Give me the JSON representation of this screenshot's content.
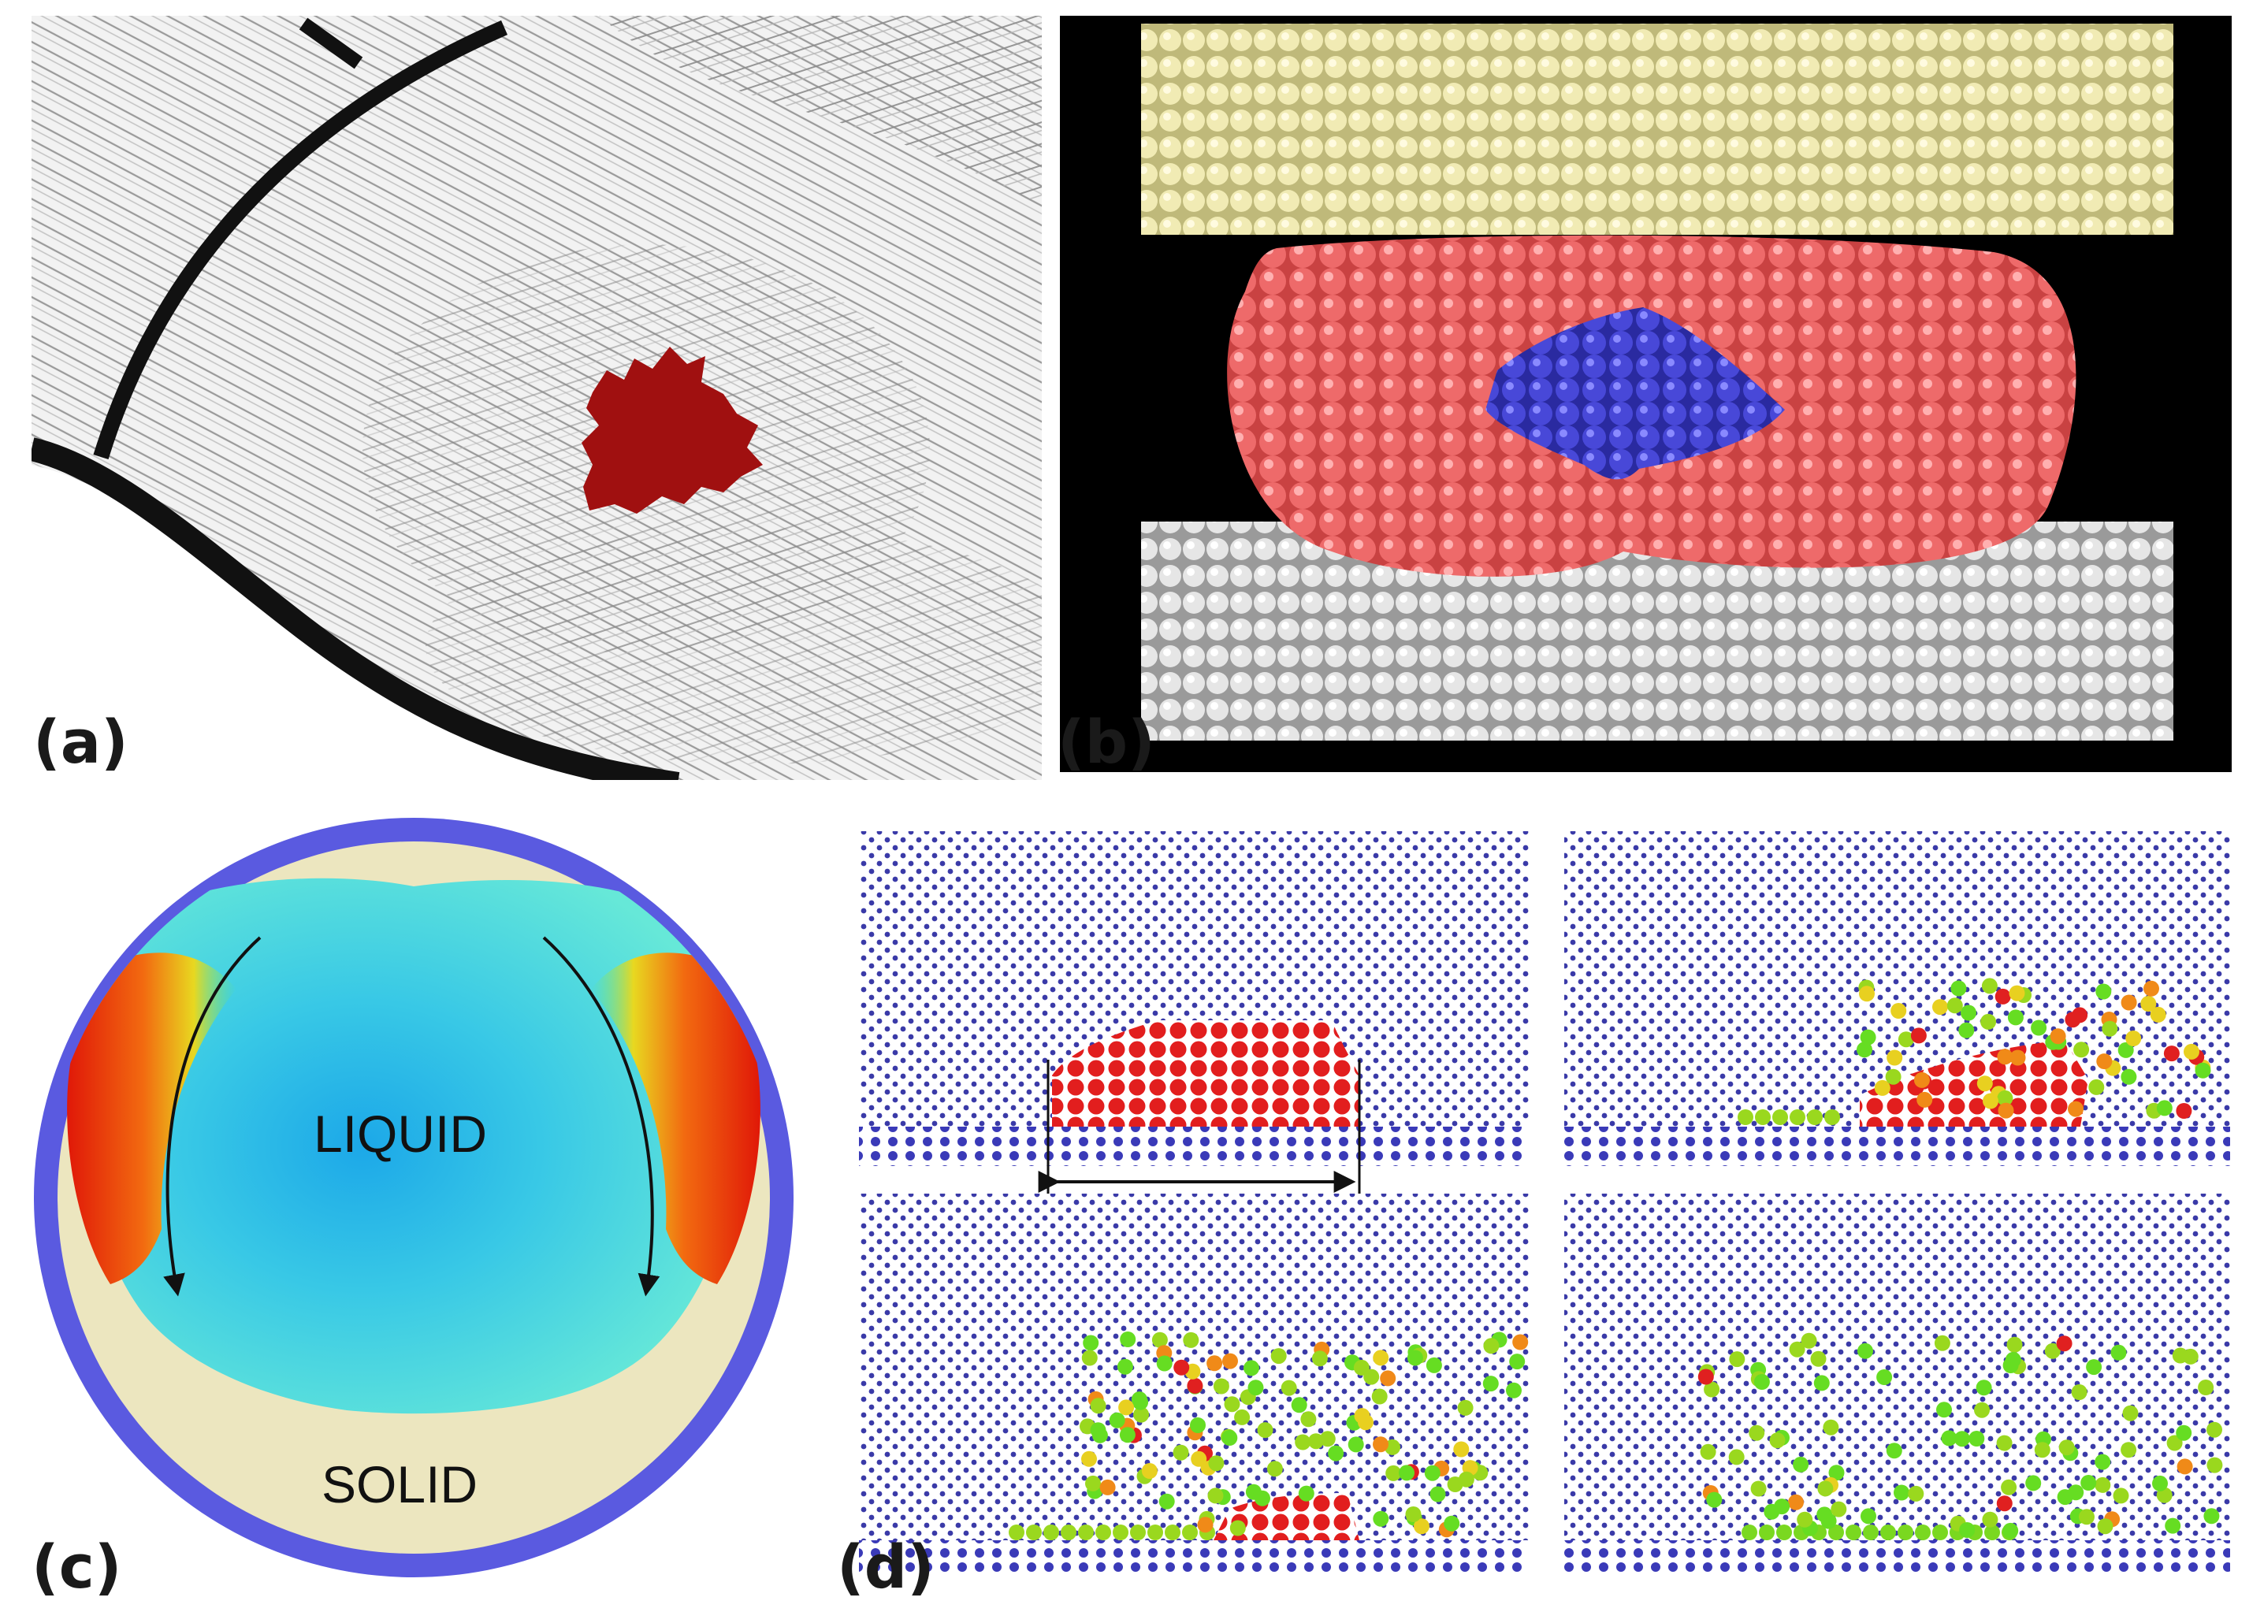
{
  "panels": {
    "a": {
      "label": "(a)"
    },
    "b": {
      "label": "(b)"
    },
    "c": {
      "label": "(c)",
      "liquid_label": "LIQUID",
      "solid_label": "SOLID"
    },
    "d": {
      "label": "(d)"
    }
  },
  "colors": {
    "cluster_red": "#a01010",
    "lattice_top": "#ede5a8",
    "lattice_bottom": "#d8d8d8",
    "droplet_red": "#e85a5a",
    "core_blue": "#3a3ad0",
    "shell_blue": "#5a5ad8",
    "solid_beige": "#ece6bf",
    "liquid_cyan": "#40d8e0",
    "hot_red": "#e02010",
    "atom_blue": "#3a3aa8",
    "atom_red": "#e02020",
    "atom_green": "#66dd22"
  },
  "icons": [
    "cluster-icon",
    "arrow-icon"
  ]
}
